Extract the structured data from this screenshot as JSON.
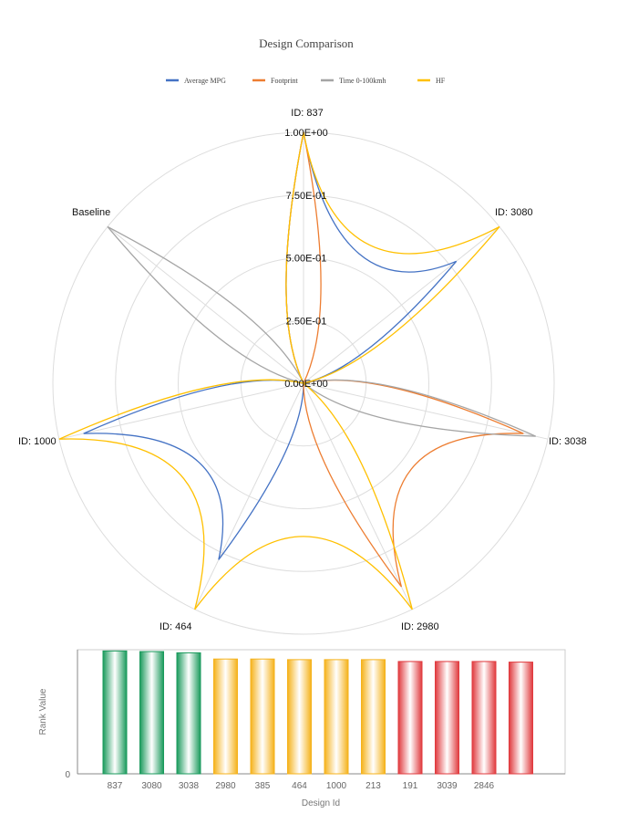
{
  "chart_data": [
    {
      "type": "radar",
      "title": "Design Comparison",
      "axes": [
        "ID: 837",
        "ID: 3080",
        "ID: 3038",
        "ID: 2980",
        "ID: 464",
        "ID: 1000",
        "Baseline"
      ],
      "radial_ticks": [
        "0.00E+00",
        "2.50E-01",
        "5.00E-01",
        "7.50E-01",
        "1.00E+00"
      ],
      "rmin": 0,
      "rmax": 1,
      "legend_position": "top",
      "grid": true,
      "series": [
        {
          "name": "Average MPG",
          "color": "#4472c4",
          "values": [
            1.0,
            0.78,
            0.0,
            0.0,
            0.78,
            0.9,
            0.0
          ]
        },
        {
          "name": "Footprint",
          "color": "#ed7d31",
          "values": [
            1.0,
            0.0,
            0.9,
            0.9,
            0.0,
            0.0,
            0.0
          ]
        },
        {
          "name": "Time 0-100kmh",
          "color": "#a5a5a5",
          "values": [
            0.0,
            0.0,
            0.95,
            0.0,
            0.0,
            0.0,
            1.0
          ]
        },
        {
          "name": "HF",
          "color": "#ffc000",
          "values": [
            1.0,
            1.0,
            0.0,
            1.0,
            1.0,
            1.0,
            0.0
          ]
        }
      ]
    },
    {
      "type": "bar",
      "xlabel": "Design Id",
      "ylabel": "Rank Value",
      "y_tick_labels": [
        "0"
      ],
      "ylim": [
        0,
        1
      ],
      "categories": [
        "837",
        "3080",
        "3038",
        "2980",
        "385",
        "464",
        "1000",
        "213",
        "191",
        "3039",
        "2846",
        ""
      ],
      "values": [
        0.99,
        0.985,
        0.975,
        0.925,
        0.925,
        0.92,
        0.92,
        0.92,
        0.905,
        0.905,
        0.905,
        0.9
      ],
      "colors": [
        "#1a9a5c",
        "#1a9a5c",
        "#1a9a5c",
        "#f5b21b",
        "#f5b21b",
        "#f5b21b",
        "#f5b21b",
        "#f5b21b",
        "#e03a3e",
        "#e03a3e",
        "#e03a3e",
        "#e03a3e"
      ]
    }
  ]
}
